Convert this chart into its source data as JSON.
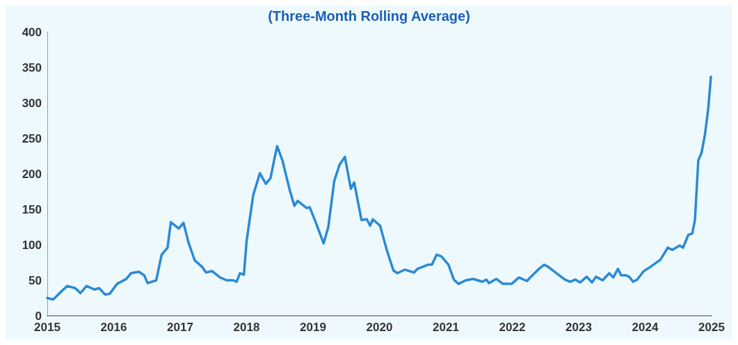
{
  "chart_data": {
    "type": "line",
    "subtitle": "(Three-Month Rolling Average)",
    "xlim": [
      2015,
      2025
    ],
    "xticks": [
      2015,
      2016,
      2017,
      2018,
      2019,
      2020,
      2021,
      2022,
      2023,
      2024,
      2025
    ],
    "ylim": [
      0,
      400
    ],
    "yticks": [
      0,
      50,
      100,
      150,
      200,
      250,
      300,
      350,
      400
    ],
    "grid": false,
    "marker": "none",
    "line_style": "solid",
    "series": [
      {
        "color": "#2a8ad4",
        "x": [
          2015.0,
          2015.09,
          2015.23,
          2015.3,
          2015.42,
          2015.5,
          2015.59,
          2015.71,
          2015.78,
          2015.87,
          2015.94,
          2016.05,
          2016.19,
          2016.26,
          2016.38,
          2016.46,
          2016.51,
          2016.64,
          2016.72,
          2016.81,
          2016.86,
          2016.98,
          2017.05,
          2017.13,
          2017.22,
          2017.33,
          2017.39,
          2017.48,
          2017.6,
          2017.7,
          2017.8,
          2017.85,
          2017.9,
          2017.96,
          2018.0,
          2018.05,
          2018.1,
          2018.2,
          2018.29,
          2018.36,
          2018.41,
          2018.46,
          2018.54,
          2018.65,
          2018.72,
          2018.77,
          2018.9,
          2018.95,
          2019.04,
          2019.16,
          2019.23,
          2019.32,
          2019.4,
          2019.48,
          2019.57,
          2019.62,
          2019.73,
          2019.81,
          2019.86,
          2019.9,
          2020.01,
          2020.11,
          2020.21,
          2020.27,
          2020.38,
          2020.52,
          2020.57,
          2020.73,
          2020.79,
          2020.86,
          2020.93,
          2021.04,
          2021.12,
          2021.19,
          2021.3,
          2021.41,
          2021.55,
          2021.61,
          2021.65,
          2021.76,
          2021.86,
          2021.99,
          2022.1,
          2022.22,
          2022.28,
          2022.4,
          2022.48,
          2022.54,
          2022.68,
          2022.79,
          2022.87,
          2022.95,
          2023.02,
          2023.12,
          2023.2,
          2023.26,
          2023.36,
          2023.46,
          2023.52,
          2023.59,
          2023.64,
          2023.71,
          2023.76,
          2023.82,
          2023.88,
          2023.98,
          2024.08,
          2024.23,
          2024.34,
          2024.41,
          2024.52,
          2024.57,
          2024.65,
          2024.71,
          2024.75,
          2024.8,
          2024.85,
          2024.9,
          2024.95,
          2024.99
        ],
        "values": [
          25,
          23,
          36,
          42,
          39,
          32,
          42,
          37,
          39,
          30,
          31,
          45,
          52,
          60,
          62,
          57,
          46,
          50,
          86,
          96,
          132,
          123,
          131,
          102,
          78,
          69,
          61,
          63,
          54,
          50,
          50,
          48,
          60,
          58,
          105,
          138,
          170,
          201,
          186,
          194,
          217,
          239,
          219,
          177,
          155,
          162,
          152,
          153,
          132,
          102,
          125,
          190,
          213,
          224,
          179,
          188,
          135,
          136,
          127,
          136,
          127,
          93,
          64,
          60,
          65,
          61,
          66,
          72,
          72,
          86,
          84,
          72,
          51,
          45,
          50,
          52,
          48,
          51,
          46,
          52,
          45,
          45,
          54,
          49,
          55,
          66,
          72,
          69,
          59,
          51,
          48,
          51,
          47,
          55,
          47,
          55,
          50,
          60,
          54,
          66,
          57,
          57,
          55,
          48,
          51,
          63,
          69,
          79,
          96,
          93,
          99,
          96,
          114,
          116,
          135,
          219,
          230,
          255,
          292,
          337
        ]
      }
    ]
  }
}
